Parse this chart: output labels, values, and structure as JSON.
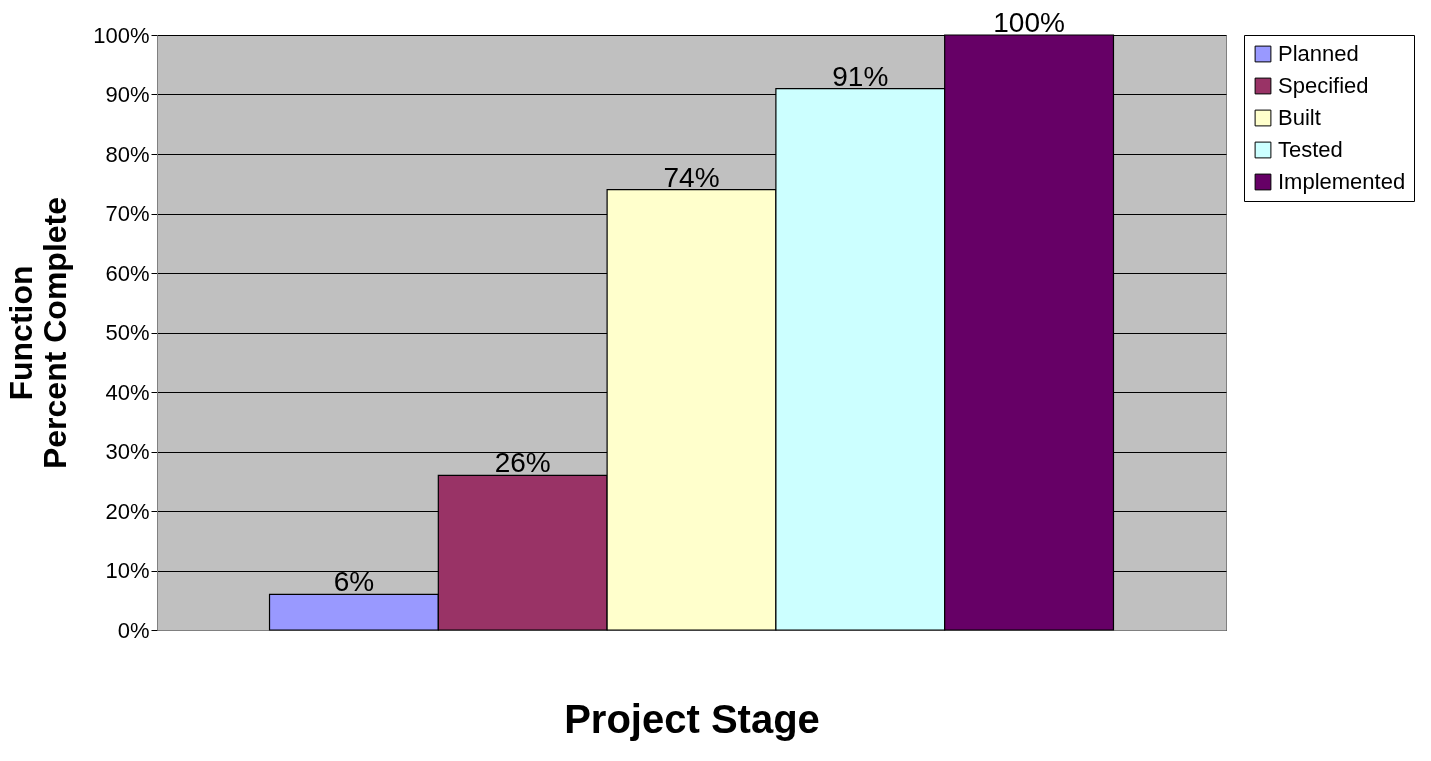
{
  "chart_data": {
    "type": "bar",
    "categories": [
      null
    ],
    "xlabel": "Project Stage",
    "ylabel": "Function\nPercent Complete",
    "series": [
      {
        "name": "Planned",
        "color": "#9999ff",
        "values": [
          6
        ],
        "value_labels": [
          "6%"
        ]
      },
      {
        "name": "Specified",
        "color": "#993366",
        "values": [
          26
        ],
        "value_labels": [
          "26%"
        ]
      },
      {
        "name": "Built",
        "color": "#ffffcc",
        "values": [
          74
        ],
        "value_labels": [
          "74%"
        ]
      },
      {
        "name": "Tested",
        "color": "#ccffff",
        "values": [
          91
        ],
        "value_labels": [
          "91%"
        ]
      },
      {
        "name": "Implemented",
        "color": "#660066",
        "values": [
          100
        ],
        "value_labels": [
          "100%"
        ]
      }
    ],
    "ylim": [
      0,
      100
    ],
    "yticks": [
      {
        "value": 0,
        "label": "0%"
      },
      {
        "value": 10,
        "label": "10%"
      },
      {
        "value": 20,
        "label": "20%"
      },
      {
        "value": 30,
        "label": "30%"
      },
      {
        "value": 40,
        "label": "40%"
      },
      {
        "value": 50,
        "label": "50%"
      },
      {
        "value": 60,
        "label": "60%"
      },
      {
        "value": 70,
        "label": "70%"
      },
      {
        "value": 80,
        "label": "80%"
      },
      {
        "value": 90,
        "label": "90%"
      },
      {
        "value": 100,
        "label": "100%"
      }
    ],
    "grid": "y",
    "legend": "right",
    "tick_labels": "y"
  }
}
